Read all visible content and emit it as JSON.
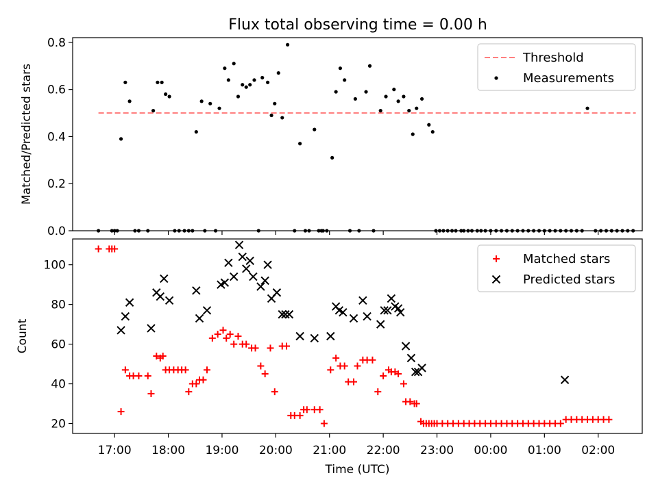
{
  "figure": {
    "title": "Flux total observing time = 0.00 h"
  },
  "chart_data": [
    {
      "type": "scatter",
      "panel": "top",
      "title": "Flux total observing time = 0.00 h",
      "xlabel": "",
      "ylabel": "Matched/Predicted stars",
      "x_unit": "hours since 17:00 UTC",
      "xlim": [
        -0.78,
        9.82
      ],
      "ylim": [
        0.0,
        0.82
      ],
      "yticks": [
        0.0,
        0.2,
        0.4,
        0.6,
        0.8
      ],
      "ytick_labels": [
        "0.0",
        "0.2",
        "0.4",
        "0.6",
        "0.8"
      ],
      "legend": {
        "position": "top-right",
        "entries": [
          "Threshold",
          "Measurements"
        ]
      },
      "grid": false,
      "series": [
        {
          "name": "Threshold",
          "style": "dashed-line",
          "color": "#ff7f7f",
          "x": [
            -0.3,
            9.7
          ],
          "y": [
            0.5,
            0.5
          ]
        },
        {
          "name": "Measurements",
          "style": "dot",
          "color": "#000000",
          "x": [
            -0.3,
            -0.05,
            0.0,
            0.05,
            0.12,
            0.2,
            0.28,
            0.38,
            0.45,
            0.62,
            0.72,
            0.8,
            0.88,
            0.95,
            1.02,
            1.12,
            1.2,
            1.3,
            1.38,
            1.45,
            1.52,
            1.62,
            1.68,
            1.78,
            1.88,
            1.95,
            2.05,
            2.12,
            2.22,
            2.3,
            2.38,
            2.45,
            2.52,
            2.6,
            2.68,
            2.75,
            2.85,
            2.92,
            2.98,
            3.05,
            3.12,
            3.22,
            3.35,
            3.45,
            3.55,
            3.62,
            3.72,
            3.8,
            3.85,
            3.88,
            3.95,
            4.05,
            4.12,
            4.2,
            4.28,
            4.38,
            4.48,
            4.55,
            4.68,
            4.75,
            4.82,
            4.95,
            5.05,
            5.2,
            5.28,
            5.38,
            5.48,
            5.55,
            5.62,
            5.72,
            5.85,
            5.92,
            5.98,
            6.05,
            6.12,
            6.2,
            6.28,
            6.35,
            6.45,
            6.5,
            6.58,
            6.65,
            6.75,
            6.82,
            6.9,
            7.0,
            7.1,
            7.2,
            7.3,
            7.4,
            7.5,
            7.6,
            7.7,
            7.8,
            7.9,
            8.0,
            8.1,
            8.2,
            8.3,
            8.4,
            8.5,
            8.6,
            8.7,
            8.8,
            8.95,
            9.05,
            9.15,
            9.25,
            9.35,
            9.45,
            9.55,
            9.65
          ],
          "y": [
            0.0,
            0.0,
            0.0,
            0.0,
            0.39,
            0.63,
            0.55,
            0.0,
            0.0,
            0.0,
            0.51,
            0.63,
            0.63,
            0.58,
            0.57,
            0.0,
            0.0,
            0.0,
            0.0,
            0.0,
            0.42,
            0.55,
            0.0,
            0.54,
            0.0,
            0.52,
            0.69,
            0.64,
            0.71,
            0.57,
            0.62,
            0.61,
            0.62,
            0.64,
            0.0,
            0.65,
            0.63,
            0.49,
            0.54,
            0.67,
            0.48,
            0.79,
            0.0,
            0.37,
            0.0,
            0.0,
            0.43,
            0.0,
            0.0,
            0.0,
            0.0,
            0.31,
            0.59,
            0.69,
            0.64,
            0.0,
            0.56,
            0.0,
            0.59,
            0.7,
            0.0,
            0.51,
            0.57,
            0.6,
            0.55,
            0.57,
            0.51,
            0.41,
            0.52,
            0.56,
            0.45,
            0.42,
            0.0,
            0.0,
            0.0,
            0.0,
            0.0,
            0.0,
            0.0,
            0.0,
            0.0,
            0.0,
            0.0,
            0.0,
            0.0,
            0.0,
            0.0,
            0.0,
            0.0,
            0.0,
            0.0,
            0.0,
            0.0,
            0.0,
            0.0,
            0.0,
            0.0,
            0.0,
            0.0,
            0.0,
            0.0,
            0.0,
            0.0,
            0.52,
            0.0,
            0.0,
            0.0,
            0.0,
            0.0,
            0.0,
            0.0,
            0.0
          ]
        }
      ]
    },
    {
      "type": "scatter",
      "panel": "bottom",
      "xlabel": "Time (UTC)",
      "ylabel": "Count",
      "x_unit": "hours since 17:00 UTC",
      "xlim": [
        -0.78,
        9.82
      ],
      "ylim": [
        15,
        113
      ],
      "yticks": [
        20,
        40,
        60,
        80,
        100
      ],
      "ytick_labels": [
        "20",
        "40",
        "60",
        "80",
        "100"
      ],
      "xticks": [
        0,
        1,
        2,
        3,
        4,
        5,
        6,
        7,
        8,
        9
      ],
      "xtick_labels": [
        "17:00",
        "18:00",
        "19:00",
        "20:00",
        "21:00",
        "22:00",
        "23:00",
        "00:00",
        "01:00",
        "02:00"
      ],
      "legend": {
        "position": "top-right",
        "entries": [
          "Matched stars",
          "Predicted stars"
        ]
      },
      "grid": false,
      "series": [
        {
          "name": "Matched stars",
          "marker": "plus",
          "color": "#ff0000",
          "x": [
            -0.3,
            -0.1,
            -0.05,
            0.0,
            0.12,
            0.2,
            0.28,
            0.35,
            0.45,
            0.62,
            0.68,
            0.78,
            0.85,
            0.9,
            0.95,
            1.02,
            1.1,
            1.18,
            1.25,
            1.32,
            1.38,
            1.45,
            1.52,
            1.58,
            1.65,
            1.72,
            1.82,
            1.92,
            2.02,
            2.08,
            2.15,
            2.22,
            2.3,
            2.38,
            2.45,
            2.55,
            2.62,
            2.72,
            2.8,
            2.9,
            2.98,
            3.12,
            3.2,
            3.28,
            3.35,
            3.45,
            3.52,
            3.58,
            3.72,
            3.82,
            3.9,
            4.02,
            4.12,
            4.2,
            4.28,
            4.35,
            4.45,
            4.52,
            4.62,
            4.7,
            4.8,
            4.9,
            5.0,
            5.1,
            5.15,
            5.22,
            5.28,
            5.38,
            5.42,
            5.5,
            5.58,
            5.62,
            5.7,
            5.75,
            5.8,
            5.85,
            5.9,
            5.95,
            6.0,
            6.1,
            6.2,
            6.3,
            6.4,
            6.5,
            6.6,
            6.7,
            6.8,
            6.9,
            7.0,
            7.1,
            7.2,
            7.3,
            7.4,
            7.5,
            7.6,
            7.7,
            7.8,
            7.9,
            8.0,
            8.1,
            8.2,
            8.3,
            8.4,
            8.5,
            8.6,
            8.7,
            8.8,
            8.9,
            9.0,
            9.1,
            9.2
          ],
          "y": [
            108,
            108,
            108,
            108,
            26,
            47,
            44,
            44,
            44,
            44,
            35,
            54,
            53,
            54,
            47,
            47,
            47,
            47,
            47,
            47,
            36,
            40,
            40,
            42,
            42,
            47,
            63,
            65,
            67,
            63,
            65,
            60,
            64,
            60,
            60,
            58,
            58,
            49,
            45,
            58,
            36,
            59,
            59,
            24,
            24,
            24,
            27,
            27,
            27,
            27,
            20,
            47,
            53,
            49,
            49,
            41,
            41,
            49,
            52,
            52,
            52,
            36,
            44,
            47,
            46,
            46,
            45,
            40,
            31,
            31,
            30,
            30,
            21,
            20,
            20,
            20,
            20,
            20,
            20,
            20,
            20,
            20,
            20,
            20,
            20,
            20,
            20,
            20,
            20,
            20,
            20,
            20,
            20,
            20,
            20,
            20,
            20,
            20,
            20,
            20,
            20,
            20,
            22,
            22,
            22,
            22,
            22,
            22,
            22,
            22,
            22
          ]
        },
        {
          "name": "Predicted stars",
          "marker": "x",
          "color": "#000000",
          "x": [
            0.12,
            0.2,
            0.28,
            0.68,
            0.78,
            0.85,
            0.92,
            1.02,
            1.52,
            1.58,
            1.72,
            1.98,
            2.05,
            2.12,
            2.22,
            2.32,
            2.38,
            2.45,
            2.52,
            2.58,
            2.72,
            2.8,
            2.85,
            2.92,
            3.02,
            3.12,
            3.18,
            3.25,
            3.45,
            3.72,
            4.02,
            4.12,
            4.18,
            4.25,
            4.45,
            4.62,
            4.7,
            4.95,
            5.02,
            5.08,
            5.15,
            5.22,
            5.28,
            5.32,
            5.42,
            5.52,
            5.6,
            5.65,
            5.72,
            8.38
          ],
          "y": [
            67,
            74,
            81,
            68,
            86,
            84,
            93,
            82,
            87,
            73,
            77,
            90,
            91,
            101,
            94,
            110,
            104,
            98,
            102,
            94,
            89,
            92,
            100,
            83,
            86,
            75,
            75,
            75,
            64,
            63,
            64,
            79,
            77,
            76,
            73,
            82,
            74,
            70,
            77,
            77,
            83,
            79,
            78,
            76,
            59,
            53,
            46,
            46,
            48,
            42
          ]
        }
      ]
    }
  ]
}
